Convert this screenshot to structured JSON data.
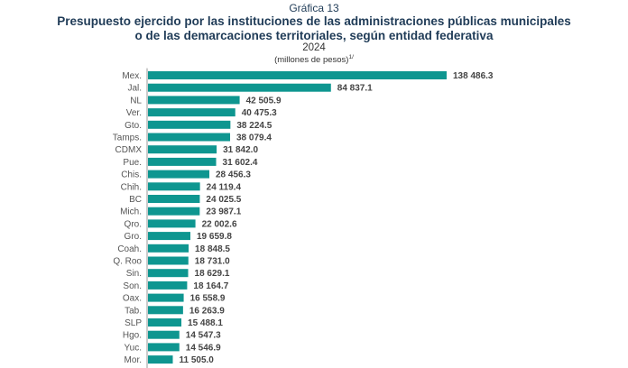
{
  "chart_data": {
    "type": "bar",
    "orientation": "horizontal",
    "label_top": "Gráfica 13",
    "title_line1": "Presupuesto ejercido por las instituciones de las administraciones públicas municipales",
    "title_line2": "o de las demarcaciones territoriales, según entidad federativa",
    "year": "2024",
    "units": "(millones de pesos)",
    "units_note": "1/",
    "categories": [
      "Mex.",
      "Jal.",
      "NL",
      "Ver.",
      "Gto.",
      "Tamps.",
      "CDMX",
      "Pue.",
      "Chis.",
      "Chih.",
      "BC",
      "Mich.",
      "Qro.",
      "Gro.",
      "Coah.",
      "Q. Roo",
      "Sin.",
      "Son.",
      "Oax.",
      "Tab.",
      "SLP",
      "Hgo.",
      "Yuc.",
      "Mor."
    ],
    "values": [
      138486.3,
      84837.1,
      42505.9,
      40475.3,
      38224.5,
      38079.4,
      31842.0,
      31602.4,
      28456.3,
      24119.4,
      24025.5,
      23987.1,
      22002.6,
      19659.8,
      18848.5,
      18731.0,
      18629.1,
      18164.7,
      16558.9,
      16263.9,
      15488.1,
      14547.3,
      14546.9,
      11505.0
    ],
    "value_labels": [
      "138 486.3",
      "84 837.1",
      "42 505.9",
      "40 475.3",
      "38 224.5",
      "38 079.4",
      "31 842.0",
      "31 602.4",
      "28 456.3",
      "24 119.4",
      "24 025.5",
      "23 987.1",
      "22 002.6",
      "19 659.8",
      "18 848.5",
      "18 731.0",
      "18 629.1",
      "18 164.7",
      "16 558.9",
      "16 263.9",
      "15 488.1",
      "14 547.3",
      "14 546.9",
      "11 505.0"
    ],
    "xlim": [
      0,
      138486.3
    ],
    "grid": false,
    "legend": "none",
    "bar_color": "#0e9690"
  }
}
